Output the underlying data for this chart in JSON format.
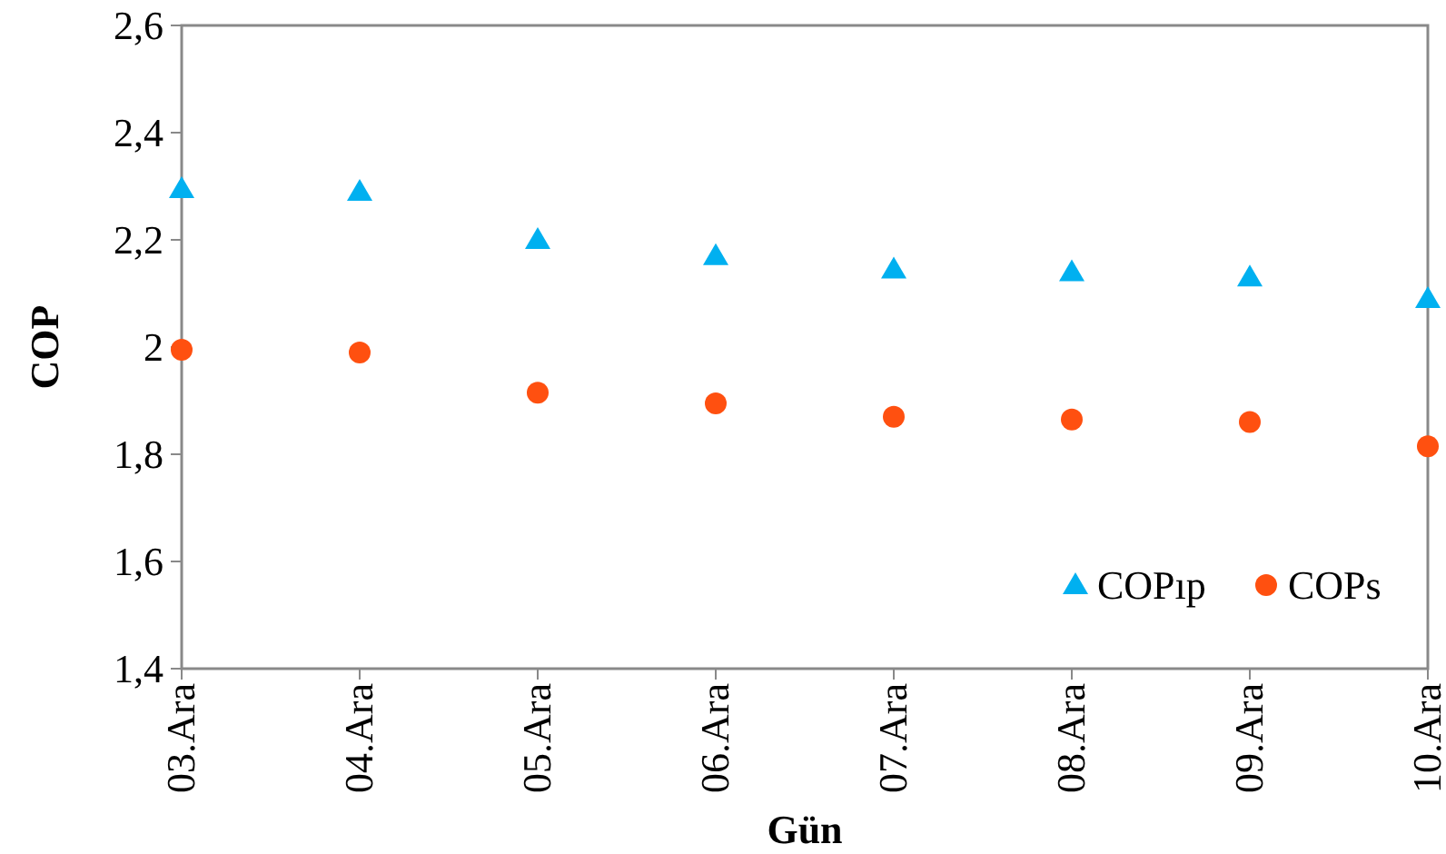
{
  "chart_data": {
    "type": "scatter",
    "xlabel": "Gün",
    "ylabel": "COP",
    "categories": [
      "03.Ara",
      "04.Ara",
      "05.Ara",
      "06.Ara",
      "07.Ara",
      "08.Ara",
      "09.Ara",
      "10.Ara"
    ],
    "series": [
      {
        "name": "COPıp",
        "color": "#00b0f0",
        "marker": "triangle",
        "values": [
          2.295,
          2.29,
          2.2,
          2.17,
          2.145,
          2.14,
          2.13,
          2.09
        ]
      },
      {
        "name": "COPs",
        "color": "#ff5010",
        "marker": "circle",
        "values": [
          1.995,
          1.99,
          1.915,
          1.895,
          1.87,
          1.865,
          1.86,
          1.815
        ]
      }
    ],
    "ylim": [
      1.4,
      2.6
    ],
    "yticks": [
      {
        "value": 1.4,
        "label": "1,4"
      },
      {
        "value": 1.6,
        "label": "1,6"
      },
      {
        "value": 1.8,
        "label": "1,8"
      },
      {
        "value": 2,
        "label": "2"
      },
      {
        "value": 2.2,
        "label": "2,2"
      },
      {
        "value": 2.4,
        "label": "2,4"
      },
      {
        "value": 2.6,
        "label": "2,6"
      }
    ],
    "grid": false,
    "legend": "bottom right"
  }
}
